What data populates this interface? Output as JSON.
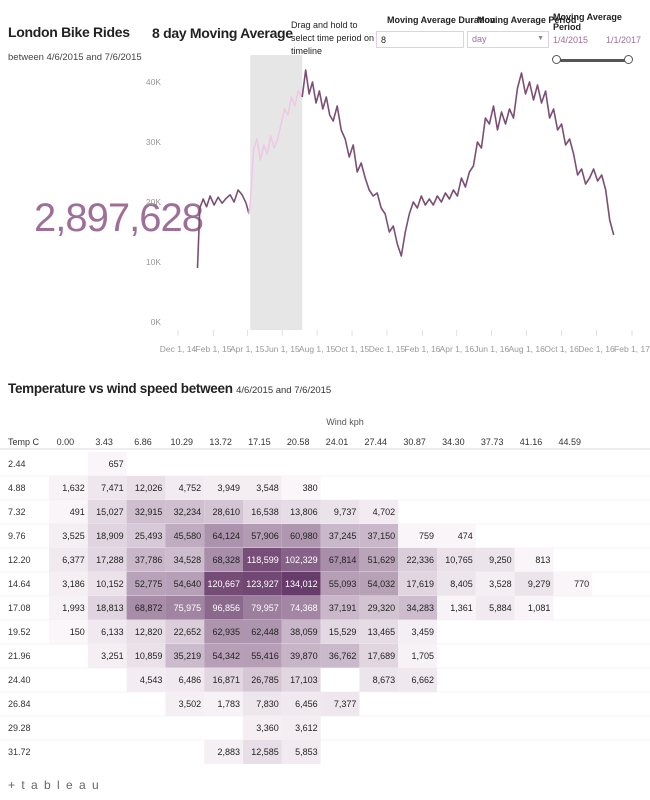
{
  "dashboard": {
    "title": "London Bike Rides",
    "subtitle": "between 4/6/2015 and 7/6/2015",
    "total_rides": "2,897,628",
    "moving_avg_title": "8 day Moving Average",
    "drag_note": "Drag and hold to select time period on timeline",
    "controls": {
      "duration_label": "Moving Average Duration",
      "duration_value": "8",
      "period_label": "Moving Average Period",
      "period_value": "day",
      "range_label": "Moving Average Period",
      "range_start": "1/4/2015",
      "range_end": "1/1/2017",
      "range_fraction": [
        0,
        1
      ]
    },
    "heatmap_title": "Temperature vs wind speed between",
    "heatmap_title_dates": "4/6/2015 and 7/6/2015",
    "logo": "+ t a b l e a u",
    "colors": {
      "line": "#7b4f74",
      "line_selected": "#f0c8e6",
      "selection": "#e6e6e6",
      "big_number": "#9e6f98"
    }
  },
  "chart_data": [
    {
      "type": "line",
      "title": "8 day Moving Average",
      "x_ticks": [
        "Dec 1, 14",
        "Feb 1, 15",
        "Apr 1, 15",
        "Jun 1, 15",
        "Aug 1, 15",
        "Oct 1, 15",
        "Dec 1, 15",
        "Feb 1, 16",
        "Apr 1, 16",
        "Jun 1, 16",
        "Aug 1, 16",
        "Oct 1, 16",
        "Dec 1, 16",
        "Feb 1, 17"
      ],
      "y_ticks": [
        "0K",
        "10K",
        "20K",
        "30K",
        "40K"
      ],
      "ylim": [
        0,
        42000
      ],
      "xlim": [
        "2014-12-01",
        "2017-02-01"
      ],
      "selected_range": [
        "2015-04-06",
        "2015-07-06"
      ],
      "series": [
        {
          "points": [
            [
              "2015-01-04",
              9000
            ],
            [
              "2015-01-08",
              19000
            ],
            [
              "2015-01-14",
              20500
            ],
            [
              "2015-01-20",
              19200
            ],
            [
              "2015-01-26",
              21000
            ],
            [
              "2015-02-02",
              19500
            ],
            [
              "2015-02-09",
              20800
            ],
            [
              "2015-02-16",
              19800
            ],
            [
              "2015-02-23",
              20600
            ],
            [
              "2015-03-02",
              21200
            ],
            [
              "2015-03-09",
              20000
            ],
            [
              "2015-03-16",
              22000
            ],
            [
              "2015-03-23",
              21200
            ],
            [
              "2015-03-30",
              19800
            ],
            [
              "2015-04-04",
              18000
            ],
            [
              "2015-04-06",
              19500
            ],
            [
              "2015-04-12",
              28800
            ],
            [
              "2015-04-18",
              30500
            ],
            [
              "2015-04-24",
              27000
            ],
            [
              "2015-04-30",
              29500
            ],
            [
              "2015-05-06",
              28000
            ],
            [
              "2015-05-12",
              31000
            ],
            [
              "2015-05-18",
              29000
            ],
            [
              "2015-05-24",
              30500
            ],
            [
              "2015-05-30",
              33000
            ],
            [
              "2015-06-05",
              35500
            ],
            [
              "2015-06-11",
              34500
            ],
            [
              "2015-06-17",
              37500
            ],
            [
              "2015-06-23",
              36000
            ],
            [
              "2015-06-29",
              38500
            ],
            [
              "2015-07-06",
              37500
            ],
            [
              "2015-07-12",
              42000
            ],
            [
              "2015-07-18",
              38000
            ],
            [
              "2015-07-24",
              40000
            ],
            [
              "2015-07-30",
              36500
            ],
            [
              "2015-08-05",
              38500
            ],
            [
              "2015-08-11",
              35500
            ],
            [
              "2015-08-17",
              37500
            ],
            [
              "2015-08-23",
              34500
            ],
            [
              "2015-08-29",
              33500
            ],
            [
              "2015-09-05",
              36000
            ],
            [
              "2015-09-12",
              32000
            ],
            [
              "2015-09-19",
              30500
            ],
            [
              "2015-09-26",
              27500
            ],
            [
              "2015-10-03",
              29500
            ],
            [
              "2015-10-10",
              25000
            ],
            [
              "2015-10-17",
              26500
            ],
            [
              "2015-10-24",
              24000
            ],
            [
              "2015-10-31",
              22000
            ],
            [
              "2015-11-07",
              21000
            ],
            [
              "2015-11-14",
              21500
            ],
            [
              "2015-11-21",
              19000
            ],
            [
              "2015-11-28",
              18000
            ],
            [
              "2015-12-05",
              15000
            ],
            [
              "2015-12-12",
              16000
            ],
            [
              "2015-12-19",
              13000
            ],
            [
              "2015-12-26",
              11000
            ],
            [
              "2016-01-02",
              15000
            ],
            [
              "2016-01-09",
              18000
            ],
            [
              "2016-01-16",
              20000
            ],
            [
              "2016-01-23",
              19000
            ],
            [
              "2016-01-30",
              21000
            ],
            [
              "2016-02-06",
              19500
            ],
            [
              "2016-02-13",
              20500
            ],
            [
              "2016-02-20",
              19500
            ],
            [
              "2016-02-27",
              21000
            ],
            [
              "2016-03-05",
              20000
            ],
            [
              "2016-03-12",
              21500
            ],
            [
              "2016-03-19",
              20500
            ],
            [
              "2016-03-26",
              22000
            ],
            [
              "2016-04-02",
              21000
            ],
            [
              "2016-04-09",
              24000
            ],
            [
              "2016-04-16",
              22500
            ],
            [
              "2016-04-23",
              25000
            ],
            [
              "2016-04-30",
              26000
            ],
            [
              "2016-05-07",
              30000
            ],
            [
              "2016-05-14",
              29000
            ],
            [
              "2016-05-21",
              34000
            ],
            [
              "2016-05-28",
              33000
            ],
            [
              "2016-06-04",
              36000
            ],
            [
              "2016-06-11",
              32000
            ],
            [
              "2016-06-18",
              35000
            ],
            [
              "2016-06-25",
              33000
            ],
            [
              "2016-07-02",
              35500
            ],
            [
              "2016-07-09",
              34000
            ],
            [
              "2016-07-16",
              39000
            ],
            [
              "2016-07-23",
              41500
            ],
            [
              "2016-07-30",
              38000
            ],
            [
              "2016-08-06",
              40000
            ],
            [
              "2016-08-13",
              37000
            ],
            [
              "2016-08-20",
              39500
            ],
            [
              "2016-08-27",
              36500
            ],
            [
              "2016-09-03",
              38500
            ],
            [
              "2016-09-10",
              34000
            ],
            [
              "2016-09-17",
              35500
            ],
            [
              "2016-09-24",
              32000
            ],
            [
              "2016-10-01",
              33000
            ],
            [
              "2016-10-08",
              29500
            ],
            [
              "2016-10-15",
              30500
            ],
            [
              "2016-10-22",
              28000
            ],
            [
              "2016-10-29",
              24500
            ],
            [
              "2016-11-05",
              25500
            ],
            [
              "2016-11-12",
              23000
            ],
            [
              "2016-11-19",
              24000
            ],
            [
              "2016-11-26",
              25500
            ],
            [
              "2016-12-03",
              23500
            ],
            [
              "2016-12-10",
              24500
            ],
            [
              "2016-12-17",
              22000
            ],
            [
              "2016-12-24",
              17000
            ],
            [
              "2016-12-31",
              14500
            ]
          ]
        }
      ]
    },
    {
      "type": "heatmap",
      "title": "Temperature vs wind speed between 4/6/2015 and 7/6/2015",
      "xlabel": "Wind kph",
      "ylabel": "Temp C",
      "x": [
        "0.00",
        "3.43",
        "6.86",
        "10.29",
        "13.72",
        "17.15",
        "20.58",
        "24.01",
        "27.44",
        "30.87",
        "34.30",
        "37.73",
        "41.16",
        "44.59"
      ],
      "y": [
        "2.44",
        "4.88",
        "7.32",
        "9.76",
        "12.20",
        "14.64",
        "17.08",
        "19.52",
        "21.96",
        "24.40",
        "26.84",
        "29.28",
        "31.72"
      ],
      "values": [
        [
          null,
          657,
          null,
          null,
          null,
          null,
          null,
          null,
          null,
          null,
          null,
          null,
          null,
          null
        ],
        [
          1632,
          7471,
          12026,
          4752,
          3949,
          3548,
          380,
          null,
          null,
          null,
          null,
          null,
          null,
          null
        ],
        [
          491,
          15027,
          32915,
          32234,
          28610,
          16538,
          13806,
          9737,
          4702,
          null,
          null,
          null,
          null,
          null
        ],
        [
          3525,
          18909,
          25493,
          45580,
          64124,
          57906,
          60980,
          37245,
          37150,
          759,
          474,
          null,
          null,
          null
        ],
        [
          6377,
          17288,
          37786,
          34528,
          68328,
          118599,
          102329,
          67814,
          51629,
          22336,
          10765,
          9250,
          813,
          null
        ],
        [
          3186,
          10152,
          52775,
          54640,
          120667,
          123927,
          134012,
          55093,
          54032,
          17619,
          8405,
          3528,
          9279,
          770
        ],
        [
          1993,
          18813,
          68872,
          75975,
          96856,
          79957,
          74368,
          37191,
          29320,
          34283,
          1361,
          5884,
          1081,
          null
        ],
        [
          150,
          6133,
          12820,
          22652,
          62935,
          62448,
          38059,
          15529,
          13465,
          3459,
          null,
          null,
          null,
          null
        ],
        [
          null,
          3251,
          10859,
          35219,
          54342,
          55416,
          39870,
          36762,
          17689,
          1705,
          null,
          null,
          null,
          null
        ],
        [
          null,
          null,
          4543,
          6486,
          16871,
          26785,
          17103,
          null,
          8673,
          6662,
          null,
          null,
          null,
          null
        ],
        [
          null,
          null,
          null,
          3502,
          1783,
          7830,
          6456,
          7377,
          null,
          null,
          null,
          null,
          null,
          null
        ],
        [
          null,
          null,
          null,
          null,
          null,
          3360,
          3612,
          null,
          null,
          null,
          null,
          null,
          null,
          null
        ],
        [
          null,
          null,
          null,
          null,
          2883,
          12585,
          5853,
          null,
          null,
          null,
          null,
          null,
          null,
          null
        ]
      ]
    }
  ]
}
